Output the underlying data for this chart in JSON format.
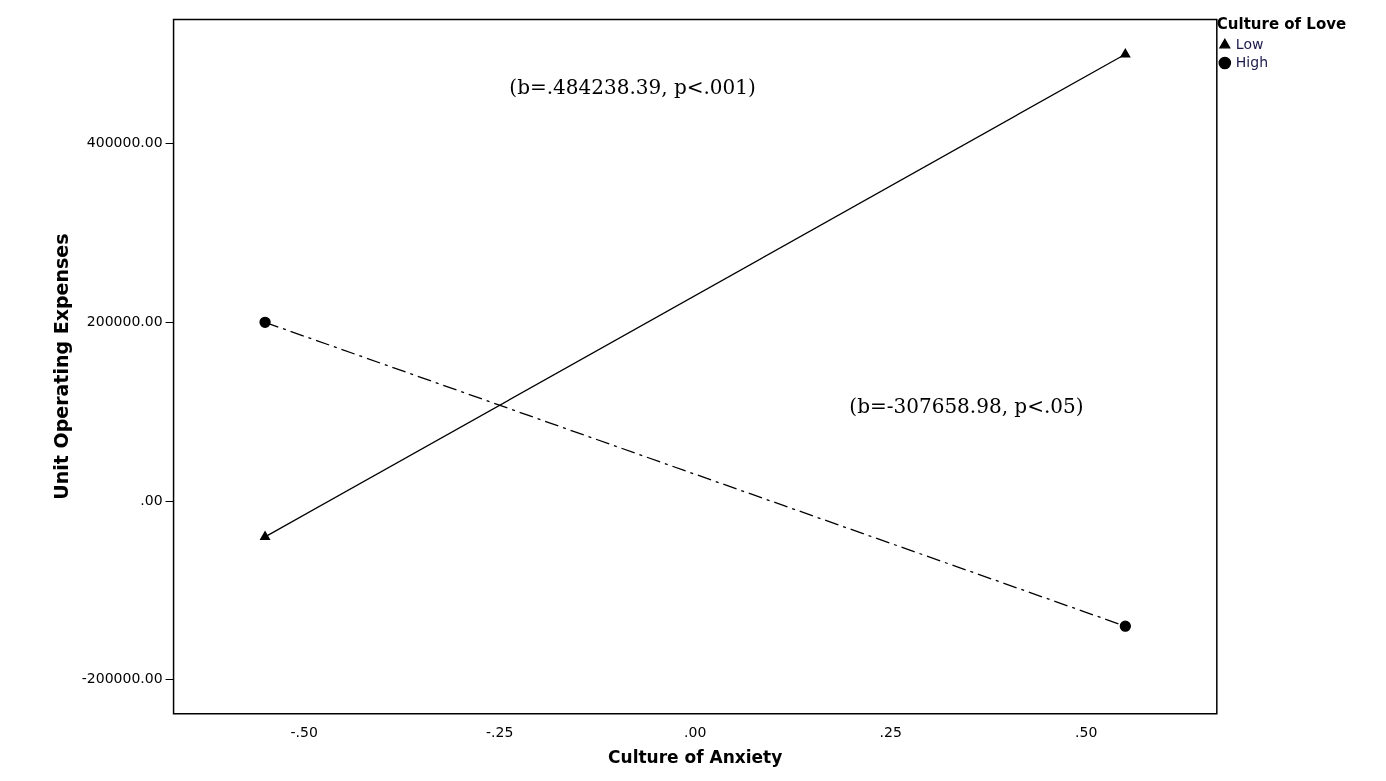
{
  "chart_data": {
    "type": "line",
    "xlabel": "Culture of Anxiety",
    "ylabel": "Unit Operating Expenses",
    "legend_title": "Culture of Love",
    "legend": "top right",
    "grid": false,
    "x": [
      -0.55,
      0.55
    ],
    "series": [
      {
        "name": "Low",
        "color": "#000000",
        "marker": "triangle",
        "line_style": "solid",
        "values": [
          -40000,
          500000
        ]
      },
      {
        "name": "High",
        "color": "#000000",
        "marker": "circle",
        "line_style": "dashed",
        "values": [
          200000,
          -140000
        ]
      }
    ],
    "xlim": [
      -0.667,
      0.667
    ],
    "xticks": [
      {
        "value": -0.5,
        "label": "-.50"
      },
      {
        "value": -0.25,
        "label": "-.25"
      },
      {
        "value": 0,
        "label": ".00"
      },
      {
        "value": 0.25,
        "label": ".25"
      },
      {
        "value": 0.5,
        "label": ".50"
      }
    ],
    "ylim": [
      -238000,
      539000
    ],
    "yticks": [
      {
        "value": -200000,
        "label": "-200000.00"
      },
      {
        "value": 0,
        "label": ".00"
      },
      {
        "value": 200000,
        "label": "200000.00"
      },
      {
        "value": 400000,
        "label": "400000.00"
      }
    ],
    "annotations": [
      "(b=.484238.39, p<.001)",
      "(b=-307658.98, p<.05)"
    ]
  }
}
